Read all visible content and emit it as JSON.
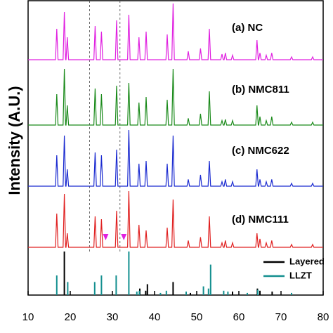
{
  "chart_data": {
    "type": "line",
    "ylabel": "Intensity (A.U.)",
    "xlim": [
      10,
      80
    ],
    "xticks": [
      10,
      20,
      30,
      40,
      50,
      60,
      70,
      80
    ],
    "ylim": [
      0,
      100
    ],
    "x": [
      10,
      16.5,
      16.8,
      17.1,
      18.3,
      18.6,
      18.9,
      19.0,
      19.3,
      19.6,
      25.6,
      25.9,
      26.2,
      27.1,
      27.4,
      27.7,
      30.7,
      31.0,
      31.3,
      33.6,
      33.9,
      34.2,
      36.0,
      36.3,
      36.6,
      37.7,
      38.0,
      38.3,
      42.7,
      43.0,
      43.3,
      44.1,
      44.4,
      44.7,
      47.7,
      48.0,
      48.3,
      50.6,
      50.9,
      51.2,
      52.7,
      53.0,
      53.3,
      55.7,
      56.0,
      56.3,
      56.5,
      56.8,
      57.1,
      58.2,
      58.5,
      58.8,
      64.0,
      64.3,
      64.6,
      64.7,
      65.0,
      65.3,
      66.2,
      66.5,
      66.8,
      67.5,
      67.8,
      68.1,
      72.2,
      72.5,
      72.8,
      77.2,
      77.5,
      77.8,
      80
    ],
    "series": [
      {
        "name": "(a) NC",
        "color": "#e020e0",
        "values": [
          0,
          0,
          55,
          0,
          0,
          85,
          0,
          0,
          40,
          0,
          0,
          60,
          0,
          0,
          50,
          0,
          0,
          70,
          0,
          0,
          80,
          0,
          0,
          40,
          0,
          0,
          50,
          0,
          0,
          45,
          0,
          0,
          100,
          0,
          0,
          15,
          0,
          0,
          20,
          0,
          0,
          55,
          0,
          0,
          10,
          0,
          0,
          12,
          0,
          0,
          8,
          0,
          0,
          35,
          0,
          0,
          12,
          0,
          0,
          8,
          0,
          0,
          12,
          0,
          0,
          5,
          0,
          0,
          5,
          0,
          0
        ]
      },
      {
        "name": "(b) NMC811",
        "color": "#1a8a1a",
        "values": [
          0,
          0,
          55,
          0,
          0,
          100,
          0,
          0,
          35,
          0,
          0,
          65,
          0,
          0,
          55,
          0,
          0,
          70,
          0,
          0,
          75,
          0,
          0,
          40,
          0,
          0,
          50,
          0,
          0,
          45,
          0,
          0,
          100,
          0,
          0,
          12,
          0,
          0,
          20,
          0,
          0,
          60,
          0,
          0,
          8,
          0,
          0,
          10,
          0,
          0,
          8,
          0,
          0,
          35,
          0,
          0,
          15,
          0,
          0,
          8,
          0,
          0,
          15,
          0,
          0,
          5,
          0,
          0,
          5,
          0,
          0
        ]
      },
      {
        "name": "(c) NMC622",
        "color": "#1a2ad0",
        "values": [
          0,
          0,
          55,
          0,
          0,
          90,
          0,
          0,
          30,
          0,
          0,
          60,
          0,
          0,
          55,
          0,
          0,
          65,
          0,
          0,
          100,
          0,
          0,
          40,
          0,
          0,
          45,
          0,
          0,
          40,
          0,
          0,
          90,
          0,
          0,
          12,
          0,
          0,
          20,
          0,
          0,
          45,
          0,
          0,
          8,
          0,
          0,
          12,
          0,
          0,
          8,
          0,
          0,
          30,
          0,
          0,
          12,
          0,
          0,
          8,
          0,
          0,
          12,
          0,
          0,
          5,
          0,
          0,
          5,
          0,
          0
        ]
      },
      {
        "name": "(d) NMC111",
        "color": "#e02020",
        "values": [
          0,
          0,
          60,
          0,
          0,
          95,
          0,
          0,
          25,
          0,
          0,
          55,
          0,
          0,
          50,
          0,
          0,
          65,
          0,
          0,
          100,
          0,
          0,
          40,
          0,
          0,
          30,
          0,
          0,
          35,
          0,
          0,
          85,
          0,
          0,
          12,
          0,
          0,
          18,
          0,
          0,
          55,
          0,
          0,
          8,
          0,
          0,
          12,
          0,
          0,
          8,
          0,
          0,
          25,
          0,
          0,
          15,
          0,
          0,
          8,
          0,
          0,
          12,
          0,
          0,
          5,
          0,
          0,
          5,
          0,
          0
        ]
      }
    ],
    "references": [
      {
        "name": "Layered",
        "color": "#000000",
        "x": [
          18.6,
          36.5,
          37.9,
          38.3,
          44.4,
          48.5,
          58.5,
          64.4,
          65.0,
          67.9
        ],
        "values": [
          100,
          15,
          10,
          25,
          30,
          5,
          8,
          15,
          10,
          8
        ]
      },
      {
        "name": "LLZT",
        "color": "#138f8f",
        "x": [
          16.8,
          19.4,
          25.8,
          27.4,
          30.9,
          33.9,
          35.8,
          36.4,
          41.4,
          42.8,
          47.5,
          51.6,
          52.8,
          53.3,
          56.4,
          57.4,
          62.0,
          64.5,
          72.5
        ],
        "values": [
          45,
          30,
          30,
          45,
          45,
          100,
          8,
          10,
          5,
          10,
          8,
          20,
          15,
          70,
          10,
          8,
          5,
          12,
          5
        ]
      }
    ],
    "dashed_lines": [
      24.6,
      31.8
    ],
    "impurity_markers": {
      "color": "#e020e0",
      "x": [
        28.4,
        32.7
      ]
    }
  }
}
